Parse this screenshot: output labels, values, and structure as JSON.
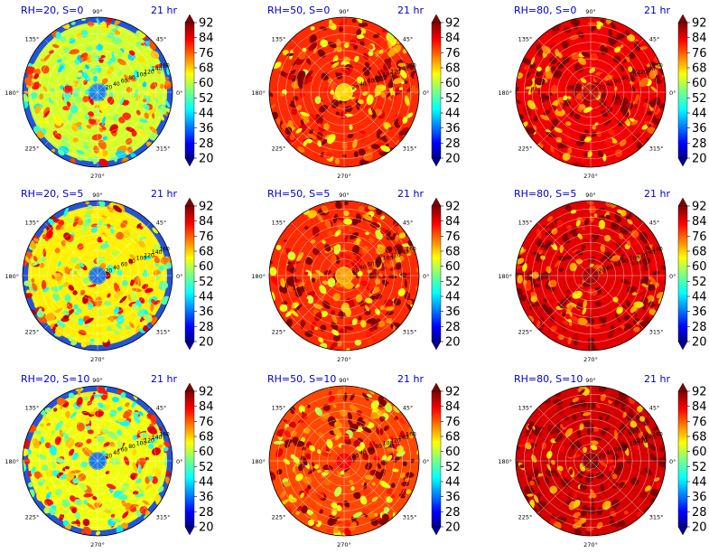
{
  "figure": {
    "time_label": "21 hr",
    "angle_labels": [
      "90°",
      "45°",
      "0°",
      "315°",
      "270°",
      "225°",
      "180°",
      "135°"
    ],
    "radial_labels": [
      "20",
      "40",
      "60",
      "80",
      "100",
      "120",
      "140",
      "160"
    ],
    "colorbar_ticks": [
      "92",
      "84",
      "76",
      "68",
      "60",
      "52",
      "44",
      "36",
      "28",
      "20"
    ]
  },
  "chart_data": [
    {
      "type": "heatmap",
      "projection": "polar",
      "title": "RH=20, S=0",
      "annotation": "21 hr",
      "radial_ticks": [
        20,
        40,
        60,
        80,
        100,
        120,
        140,
        160
      ],
      "radial_lim": [
        0,
        180
      ],
      "angle_ticks_deg": [
        0,
        45,
        90,
        135,
        180,
        225,
        270,
        315
      ],
      "colorbar": {
        "colormap": "jet",
        "range": [
          20,
          92
        ],
        "ticks": [
          20,
          28,
          36,
          44,
          52,
          60,
          68,
          76,
          84,
          92
        ],
        "extend": "both"
      },
      "approx_mean": 62,
      "center_value": 38
    },
    {
      "type": "heatmap",
      "projection": "polar",
      "title": "RH=50, S=0",
      "annotation": "21 hr",
      "radial_ticks": [
        20,
        40,
        60,
        80,
        100,
        120,
        140,
        160
      ],
      "radial_lim": [
        0,
        180
      ],
      "angle_ticks_deg": [
        0,
        45,
        90,
        135,
        180,
        225,
        270,
        315
      ],
      "colorbar": {
        "colormap": "jet",
        "range": [
          20,
          92
        ],
        "ticks": [
          20,
          28,
          36,
          44,
          52,
          60,
          68,
          76,
          84,
          92
        ],
        "extend": "both"
      },
      "approx_mean": 80,
      "center_value": 66
    },
    {
      "type": "heatmap",
      "projection": "polar",
      "title": "RH=80, S=0",
      "annotation": "21 hr",
      "radial_ticks": [
        20,
        40,
        60,
        80,
        100,
        120,
        140,
        160
      ],
      "radial_lim": [
        0,
        180
      ],
      "angle_ticks_deg": [
        0,
        45,
        90,
        135,
        180,
        225,
        270,
        315
      ],
      "colorbar": {
        "colormap": "jet",
        "range": [
          20,
          92
        ],
        "ticks": [
          20,
          28,
          36,
          44,
          52,
          60,
          68,
          76,
          84,
          92
        ],
        "extend": "both"
      },
      "approx_mean": 84,
      "center_value": 88
    },
    {
      "type": "heatmap",
      "projection": "polar",
      "title": "RH=20, S=5",
      "annotation": "21 hr",
      "radial_ticks": [
        20,
        40,
        60,
        80,
        100,
        120,
        140,
        160
      ],
      "radial_lim": [
        0,
        180
      ],
      "angle_ticks_deg": [
        0,
        45,
        90,
        135,
        180,
        225,
        270,
        315
      ],
      "colorbar": {
        "colormap": "jet",
        "range": [
          20,
          92
        ],
        "ticks": [
          20,
          28,
          36,
          44,
          52,
          60,
          68,
          76,
          84,
          92
        ],
        "extend": "both"
      },
      "approx_mean": 66,
      "center_value": 36
    },
    {
      "type": "heatmap",
      "projection": "polar",
      "title": "RH=50, S=5",
      "annotation": "21 hr",
      "radial_ticks": [
        20,
        40,
        60,
        80,
        100,
        120,
        140,
        160
      ],
      "radial_lim": [
        0,
        180
      ],
      "angle_ticks_deg": [
        0,
        45,
        90,
        135,
        180,
        225,
        270,
        315
      ],
      "colorbar": {
        "colormap": "jet",
        "range": [
          20,
          92
        ],
        "ticks": [
          20,
          28,
          36,
          44,
          52,
          60,
          68,
          76,
          84,
          92
        ],
        "extend": "both"
      },
      "approx_mean": 80,
      "center_value": 70
    },
    {
      "type": "heatmap",
      "projection": "polar",
      "title": "RH=80, S=5",
      "annotation": "21 hr",
      "radial_ticks": [
        20,
        40,
        60,
        80,
        100,
        120,
        140,
        160
      ],
      "radial_lim": [
        0,
        180
      ],
      "angle_ticks_deg": [
        0,
        45,
        90,
        135,
        180,
        225,
        270,
        315
      ],
      "colorbar": {
        "colormap": "jet",
        "range": [
          20,
          92
        ],
        "ticks": [
          20,
          28,
          36,
          44,
          52,
          60,
          68,
          76,
          84,
          92
        ],
        "extend": "both"
      },
      "approx_mean": 85,
      "center_value": 90
    },
    {
      "type": "heatmap",
      "projection": "polar",
      "title": "RH=20, S=10",
      "annotation": "21 hr",
      "radial_ticks": [
        20,
        40,
        60,
        80,
        100,
        120,
        140,
        160
      ],
      "radial_lim": [
        0,
        180
      ],
      "angle_ticks_deg": [
        0,
        45,
        90,
        135,
        180,
        225,
        270,
        315
      ],
      "colorbar": {
        "colormap": "jet",
        "range": [
          20,
          92
        ],
        "ticks": [
          20,
          28,
          36,
          44,
          52,
          60,
          68,
          76,
          84,
          92
        ],
        "extend": "both"
      },
      "approx_mean": 64,
      "center_value": 36
    },
    {
      "type": "heatmap",
      "projection": "polar",
      "title": "RH=50, S=10",
      "annotation": "21 hr",
      "radial_ticks": [
        20,
        40,
        60,
        80,
        100,
        120,
        140,
        160
      ],
      "radial_lim": [
        0,
        180
      ],
      "angle_ticks_deg": [
        0,
        45,
        90,
        135,
        180,
        225,
        270,
        315
      ],
      "colorbar": {
        "colormap": "jet",
        "range": [
          20,
          92
        ],
        "ticks": [
          20,
          28,
          36,
          44,
          52,
          60,
          68,
          76,
          84,
          92
        ],
        "extend": "both"
      },
      "approx_mean": 78,
      "center_value": 84
    },
    {
      "type": "heatmap",
      "projection": "polar",
      "title": "RH=80, S=10",
      "annotation": "21 hr",
      "radial_ticks": [
        20,
        40,
        60,
        80,
        100,
        120,
        140,
        160
      ],
      "radial_lim": [
        0,
        180
      ],
      "angle_ticks_deg": [
        0,
        45,
        90,
        135,
        180,
        225,
        270,
        315
      ],
      "colorbar": {
        "colormap": "jet",
        "range": [
          20,
          92
        ],
        "ticks": [
          20,
          28,
          36,
          44,
          52,
          60,
          68,
          76,
          84,
          92
        ],
        "extend": "both"
      },
      "approx_mean": 86,
      "center_value": 92
    }
  ]
}
